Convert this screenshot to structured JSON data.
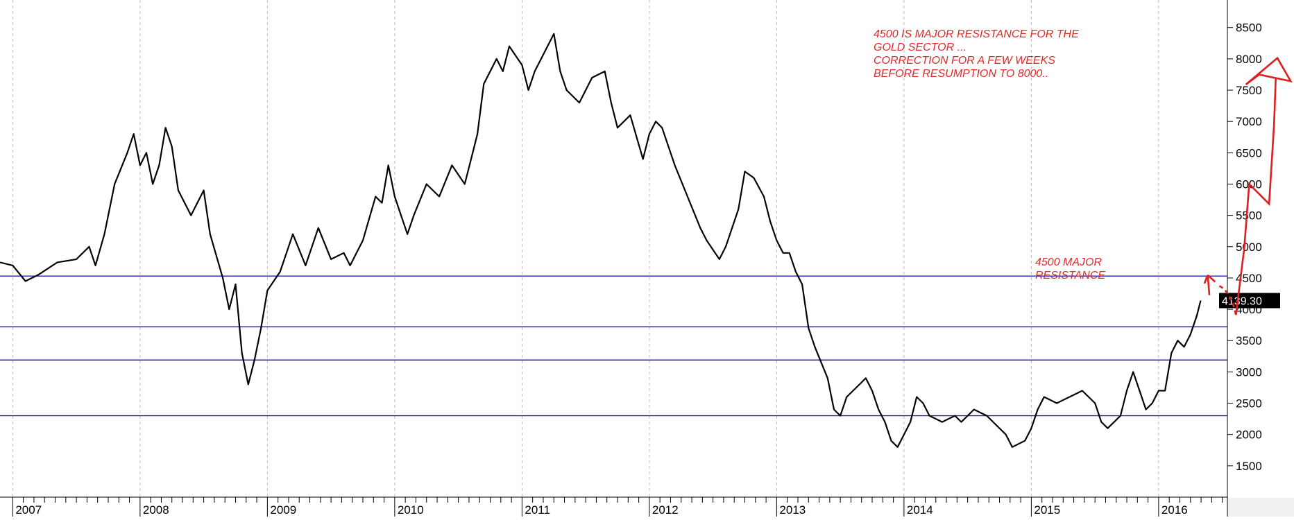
{
  "chart_data": {
    "type": "line",
    "xlim": [
      2006.9,
      2016.54
    ],
    "ylim": [
      1000,
      8940
    ],
    "xticks": [
      2007,
      2008,
      2009,
      2010,
      2011,
      2012,
      2013,
      2014,
      2015,
      2016
    ],
    "yticks": [
      1500,
      2000,
      2500,
      3000,
      3500,
      4000,
      4500,
      5000,
      5500,
      6000,
      6500,
      7000,
      7500,
      8000,
      8500
    ],
    "grid": true,
    "series": [
      {
        "color": "#000000",
        "x": [
          2006.9,
          2007.0,
          2007.1,
          2007.2,
          2007.35,
          2007.5,
          2007.6,
          2007.65,
          2007.72,
          2007.8,
          2007.9,
          2007.95,
          2008.0,
          2008.05,
          2008.1,
          2008.15,
          2008.2,
          2008.25,
          2008.3,
          2008.4,
          2008.5,
          2008.55,
          2008.65,
          2008.7,
          2008.75,
          2008.8,
          2008.85,
          2008.9,
          2008.95,
          2009.0,
          2009.1,
          2009.15,
          2009.2,
          2009.3,
          2009.4,
          2009.5,
          2009.6,
          2009.65,
          2009.75,
          2009.85,
          2009.9,
          2009.95,
          2010.0,
          2010.05,
          2010.1,
          2010.15,
          2010.25,
          2010.35,
          2010.45,
          2010.55,
          2010.6,
          2010.65,
          2010.7,
          2010.8,
          2010.85,
          2010.9,
          2011.0,
          2011.05,
          2011.1,
          2011.15,
          2011.25,
          2011.3,
          2011.35,
          2011.45,
          2011.55,
          2011.65,
          2011.7,
          2011.75,
          2011.85,
          2011.95,
          2012.0,
          2012.05,
          2012.1,
          2012.2,
          2012.3,
          2012.4,
          2012.45,
          2012.55,
          2012.6,
          2012.7,
          2012.75,
          2012.82,
          2012.9,
          2012.95,
          2013.0,
          2013.05,
          2013.1,
          2013.15,
          2013.2,
          2013.25,
          2013.3,
          2013.4,
          2013.45,
          2013.5,
          2013.55,
          2013.65,
          2013.7,
          2013.75,
          2013.8,
          2013.85,
          2013.9,
          2013.95,
          2014.0,
          2014.05,
          2014.1,
          2014.15,
          2014.2,
          2014.3,
          2014.4,
          2014.45,
          2014.55,
          2014.65,
          2014.7,
          2014.8,
          2014.85,
          2014.95,
          2015.0,
          2015.05,
          2015.1,
          2015.2,
          2015.3,
          2015.4,
          2015.5,
          2015.55,
          2015.6,
          2015.7,
          2015.75,
          2015.8,
          2015.85,
          2015.9,
          2015.95,
          2016.0,
          2016.05,
          2016.1,
          2016.15,
          2016.2,
          2016.25,
          2016.3,
          2016.33
        ],
        "values": [
          4750,
          4700,
          4450,
          4550,
          4750,
          4800,
          5000,
          4700,
          5200,
          6000,
          6500,
          6800,
          6300,
          6500,
          6000,
          6300,
          6900,
          6600,
          5900,
          5500,
          5900,
          5200,
          4500,
          4000,
          4400,
          3300,
          2800,
          3200,
          3700,
          4300,
          4600,
          4900,
          5200,
          4700,
          5300,
          4800,
          4900,
          4700,
          5100,
          5800,
          5700,
          6300,
          5800,
          5500,
          5200,
          5500,
          6000,
          5800,
          6300,
          6000,
          6400,
          6800,
          7600,
          8000,
          7800,
          8200,
          7900,
          7500,
          7800,
          8000,
          8400,
          7800,
          7500,
          7300,
          7700,
          7800,
          7300,
          6900,
          7100,
          6400,
          6800,
          7000,
          6900,
          6300,
          5800,
          5300,
          5100,
          4800,
          5000,
          5600,
          6200,
          6100,
          5800,
          5400,
          5100,
          4900,
          4900,
          4600,
          4400,
          3700,
          3400,
          2900,
          2400,
          2300,
          2600,
          2800,
          2900,
          2700,
          2400,
          2200,
          1900,
          1800,
          2000,
          2200,
          2600,
          2500,
          2300,
          2200,
          2300,
          2200,
          2400,
          2300,
          2200,
          2000,
          1800,
          1900,
          2100,
          2400,
          2600,
          2500,
          2600,
          2700,
          2500,
          2200,
          2100,
          2300,
          2700,
          3000,
          2700,
          2400,
          2500,
          2700,
          2700,
          3300,
          3500,
          3400,
          3600,
          3900,
          4139.3
        ]
      }
    ],
    "last_value": 4139.3,
    "last_value_label": "4139.30",
    "levels": [
      4530,
      3720,
      3190,
      2300
    ],
    "level_color": "#2222bb",
    "annotations": [
      [
        "4500 IS MAJOR RESISTANCE FOR THE",
        "GOLD SECTOR ...",
        "CORRECTION FOR A FEW WEEKS",
        "BEFORE RESUMPTION TO 8000.."
      ],
      [
        "4500 MAJOR",
        "RESISTANCE"
      ]
    ],
    "annotation_color": "#dd2a2a"
  }
}
